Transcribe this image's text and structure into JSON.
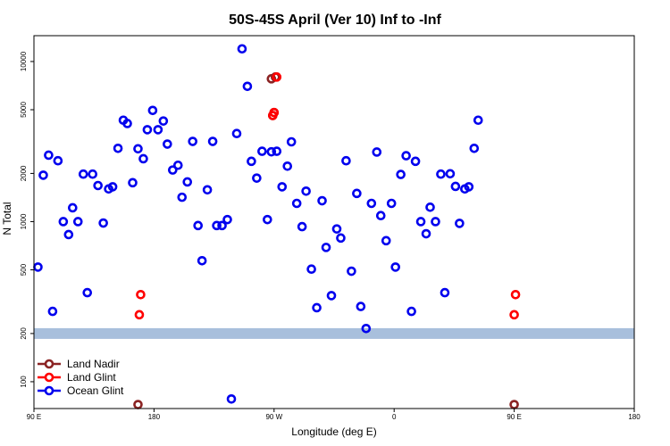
{
  "chart_data": {
    "type": "scatter",
    "title": "50S-45S April (Ver 10)   Inf to -Inf",
    "xlabel": "Longitude (deg E)",
    "ylabel": "N Total",
    "x_ticks": [
      {
        "value": 90,
        "label": "90 E"
      },
      {
        "value": 180,
        "label": "180"
      },
      {
        "value": 270,
        "label": "90 W"
      },
      {
        "value": 360,
        "label": "0"
      },
      {
        "value": 450,
        "label": "90 E"
      },
      {
        "value": 540,
        "label": "180"
      }
    ],
    "y_ticks": [
      {
        "value": 100,
        "label": "100"
      },
      {
        "value": 200,
        "label": "200"
      },
      {
        "value": 500,
        "label": "500"
      },
      {
        "value": 1000,
        "label": "1000"
      },
      {
        "value": 2000,
        "label": "2000"
      },
      {
        "value": 5000,
        "label": "5000"
      },
      {
        "value": 10000,
        "label": "10000"
      }
    ],
    "xlim": [
      90,
      540
    ],
    "ylim": [
      68,
      14500
    ],
    "y_scale": "log",
    "grid": false,
    "legend_position": "bottom-left",
    "reference_band": {
      "value": 200,
      "color": "#a8bfdc"
    },
    "series": [
      {
        "name": "Land Nadir",
        "color": "#8b2323",
        "points": [
          [
            168,
            72
          ],
          [
            268,
            7800
          ],
          [
            271,
            8000
          ],
          [
            269,
            4600
          ],
          [
            270,
            4800
          ],
          [
            450,
            72
          ]
        ]
      },
      {
        "name": "Land Glint",
        "color": "#ff0000",
        "points": [
          [
            170,
            350
          ],
          [
            169,
            262
          ],
          [
            269,
            4600
          ],
          [
            270,
            4800
          ],
          [
            272,
            8000
          ],
          [
            451,
            350
          ],
          [
            450,
            262
          ]
        ]
      },
      {
        "name": "Ocean Glint",
        "color": "#0000ee",
        "points": [
          [
            93,
            520
          ],
          [
            97,
            1950
          ],
          [
            101,
            2600
          ],
          [
            104,
            275
          ],
          [
            108,
            2400
          ],
          [
            112,
            1000
          ],
          [
            116,
            830
          ],
          [
            119,
            1220
          ],
          [
            123,
            1000
          ],
          [
            127,
            1980
          ],
          [
            130,
            360
          ],
          [
            134,
            1980
          ],
          [
            138,
            1680
          ],
          [
            142,
            980
          ],
          [
            146,
            1600
          ],
          [
            149,
            1650
          ],
          [
            153,
            2870
          ],
          [
            157,
            4300
          ],
          [
            160,
            4100
          ],
          [
            164,
            1750
          ],
          [
            168,
            2850
          ],
          [
            172,
            2470
          ],
          [
            175,
            3750
          ],
          [
            179,
            4950
          ],
          [
            183,
            3750
          ],
          [
            187,
            4250
          ],
          [
            190,
            3050
          ],
          [
            194,
            2100
          ],
          [
            198,
            2250
          ],
          [
            201,
            1420
          ],
          [
            205,
            1770
          ],
          [
            209,
            3170
          ],
          [
            213,
            945
          ],
          [
            216,
            570
          ],
          [
            220,
            1580
          ],
          [
            224,
            3170
          ],
          [
            227,
            945
          ],
          [
            231,
            945
          ],
          [
            235,
            1030
          ],
          [
            238,
            78
          ],
          [
            242,
            3550
          ],
          [
            246,
            12000
          ],
          [
            250,
            7000
          ],
          [
            253,
            2380
          ],
          [
            257,
            1870
          ],
          [
            261,
            2750
          ],
          [
            265,
            1030
          ],
          [
            268,
            2730
          ],
          [
            272,
            2750
          ],
          [
            276,
            1650
          ],
          [
            280,
            2220
          ],
          [
            283,
            3150
          ],
          [
            287,
            1300
          ],
          [
            291,
            930
          ],
          [
            294,
            1550
          ],
          [
            298,
            505
          ],
          [
            302,
            290
          ],
          [
            306,
            1350
          ],
          [
            309,
            690
          ],
          [
            313,
            345
          ],
          [
            317,
            900
          ],
          [
            320,
            790
          ],
          [
            324,
            2400
          ],
          [
            328,
            490
          ],
          [
            332,
            1500
          ],
          [
            335,
            295
          ],
          [
            339,
            215
          ],
          [
            343,
            1300
          ],
          [
            347,
            2720
          ],
          [
            350,
            1090
          ],
          [
            354,
            760
          ],
          [
            358,
            1300
          ],
          [
            361,
            520
          ],
          [
            365,
            1970
          ],
          [
            369,
            2580
          ],
          [
            373,
            275
          ],
          [
            376,
            2380
          ],
          [
            380,
            1000
          ],
          [
            384,
            840
          ],
          [
            387,
            1230
          ],
          [
            391,
            1000
          ],
          [
            395,
            1980
          ],
          [
            398,
            360
          ],
          [
            402,
            1990
          ],
          [
            406,
            1660
          ],
          [
            409,
            975
          ],
          [
            413,
            1600
          ],
          [
            416,
            1650
          ],
          [
            420,
            2870
          ],
          [
            423,
            4300
          ]
        ]
      }
    ]
  }
}
